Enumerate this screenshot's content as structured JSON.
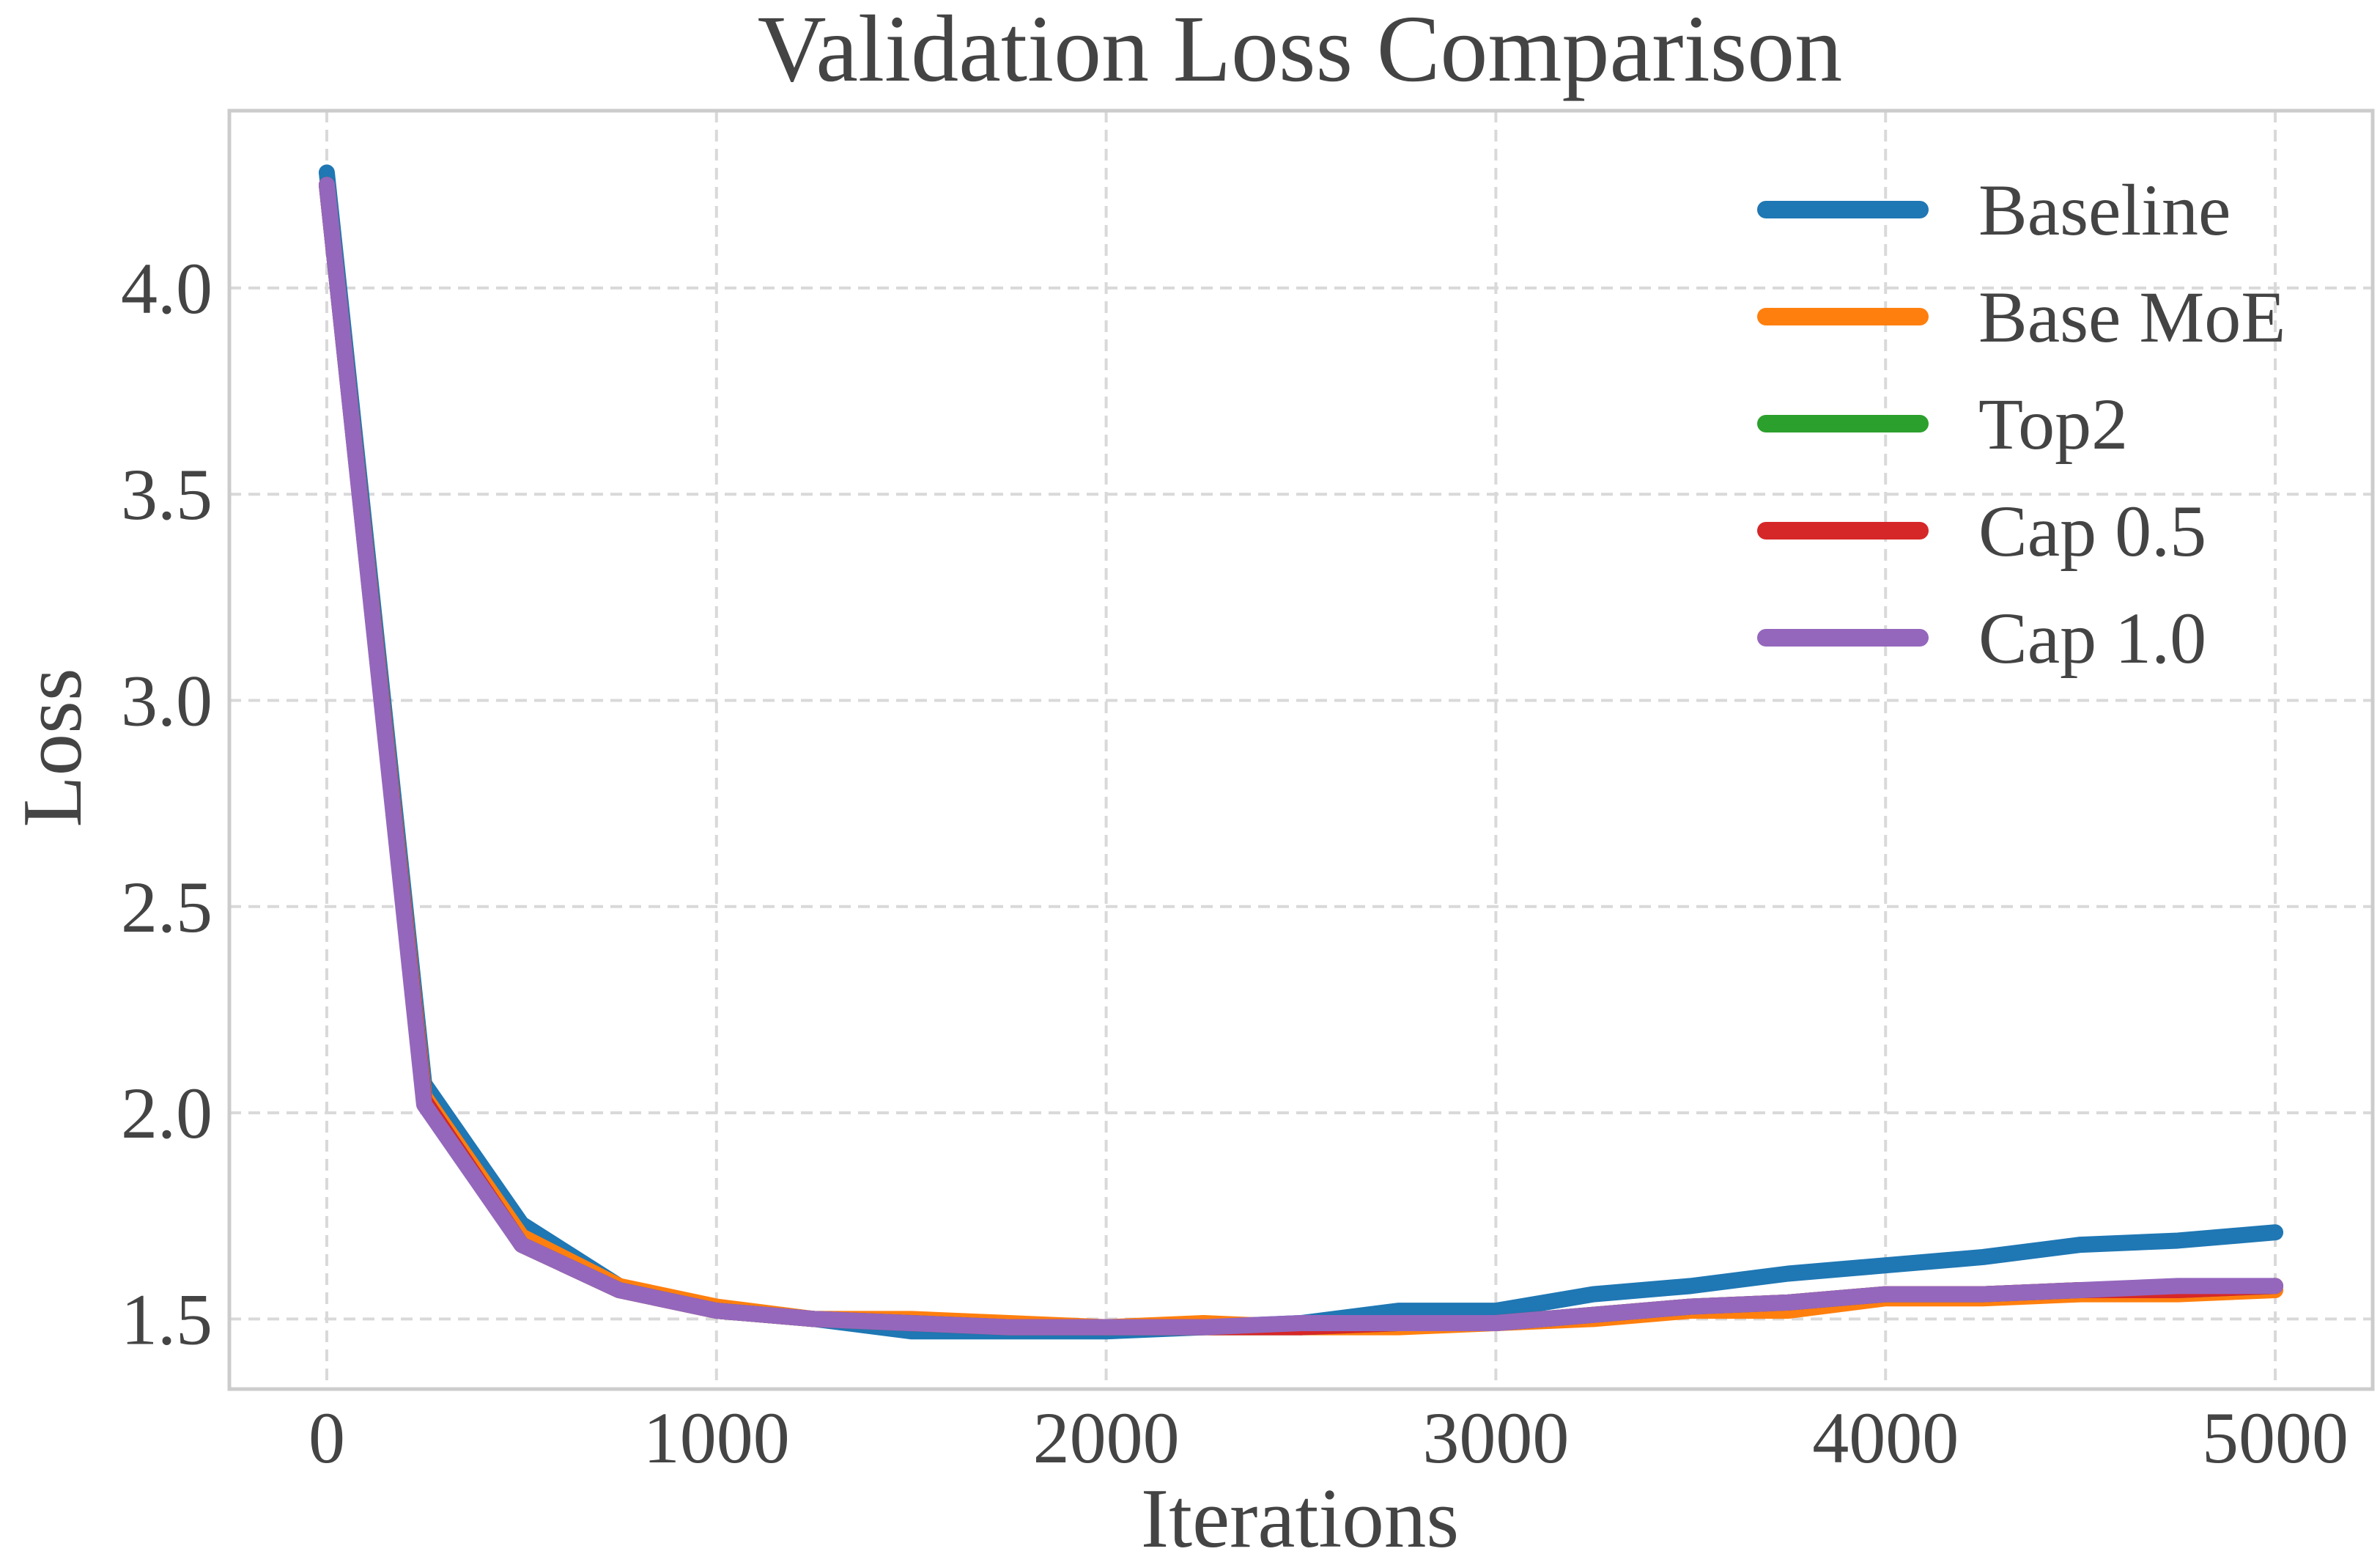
{
  "chart_data": {
    "type": "line",
    "title": "Validation Loss Comparison",
    "xlabel": "Iterations",
    "ylabel": "Loss",
    "xlim": [
      -250,
      5250
    ],
    "ylim": [
      1.33,
      4.43
    ],
    "xticks": [
      0,
      1000,
      2000,
      3000,
      4000,
      5000
    ],
    "xtick_labels": [
      "0",
      "1000",
      "2000",
      "3000",
      "4000",
      "5000"
    ],
    "yticks": [
      1.5,
      2.0,
      2.5,
      3.0,
      3.5,
      4.0
    ],
    "ytick_labels": [
      "1.5",
      "2.0",
      "2.5",
      "3.0",
      "3.5",
      "4.0"
    ],
    "grid": true,
    "legend_position": "top-right",
    "x": [
      0,
      250,
      500,
      750,
      1000,
      1250,
      1500,
      1750,
      2000,
      2250,
      2500,
      2750,
      3000,
      3250,
      3500,
      3750,
      4000,
      4250,
      4500,
      4750,
      5000
    ],
    "series": [
      {
        "name": "Baseline",
        "color": "#1f77b4",
        "values": [
          4.28,
          2.07,
          1.73,
          1.58,
          1.52,
          1.5,
          1.47,
          1.47,
          1.47,
          1.48,
          1.49,
          1.52,
          1.52,
          1.56,
          1.58,
          1.61,
          1.63,
          1.65,
          1.68,
          1.69,
          1.71
        ]
      },
      {
        "name": "Base MoE",
        "color": "#ff7f0e",
        "values": [
          4.25,
          2.04,
          1.7,
          1.58,
          1.53,
          1.5,
          1.5,
          1.49,
          1.48,
          1.49,
          1.48,
          1.48,
          1.49,
          1.5,
          1.52,
          1.52,
          1.55,
          1.55,
          1.56,
          1.56,
          1.57
        ]
      },
      {
        "name": "Top2",
        "color": "#2ca02c",
        "values": [
          4.25,
          2.03,
          1.68,
          1.57,
          1.52,
          1.5,
          1.49,
          1.48,
          1.48,
          1.48,
          1.48,
          1.49,
          1.49,
          1.51,
          1.53,
          1.54,
          1.56,
          1.56,
          1.57,
          1.57,
          1.58
        ]
      },
      {
        "name": "Cap 0.5",
        "color": "#d62728",
        "values": [
          4.25,
          2.03,
          1.68,
          1.57,
          1.52,
          1.5,
          1.49,
          1.48,
          1.48,
          1.48,
          1.48,
          1.49,
          1.49,
          1.51,
          1.53,
          1.54,
          1.56,
          1.56,
          1.57,
          1.57,
          1.58
        ]
      },
      {
        "name": "Cap 1.0",
        "color": "#9467bd",
        "values": [
          4.25,
          2.02,
          1.68,
          1.57,
          1.52,
          1.5,
          1.49,
          1.48,
          1.48,
          1.48,
          1.49,
          1.49,
          1.49,
          1.51,
          1.53,
          1.54,
          1.56,
          1.56,
          1.57,
          1.58,
          1.58
        ]
      }
    ]
  }
}
